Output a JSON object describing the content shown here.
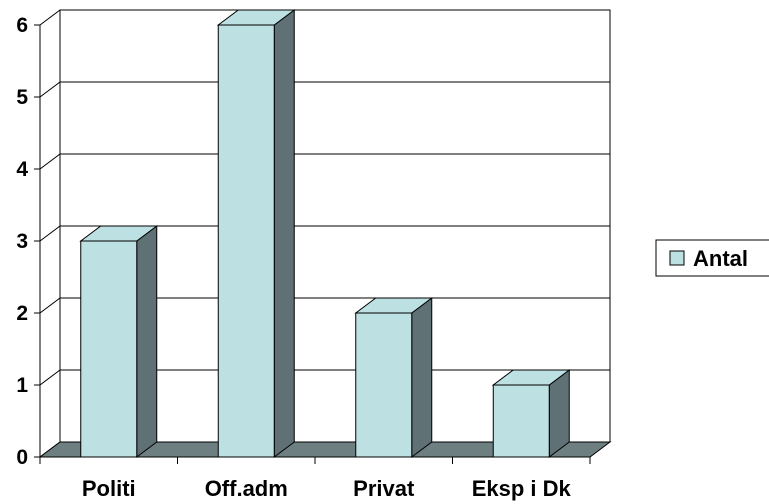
{
  "chart_data": {
    "type": "bar",
    "categories": [
      "Politi",
      "Off.adm",
      "Privat",
      "Eksp i Dk"
    ],
    "series": [
      {
        "name": "Antal",
        "values": [
          3,
          6,
          2,
          1
        ]
      }
    ],
    "yticks": [
      "0",
      "1",
      "2",
      "3",
      "4",
      "5",
      "6"
    ],
    "ylim": [
      0,
      6
    ],
    "grid": true,
    "legend": "right",
    "colors": {
      "bar_front": "#bde0e3",
      "bar_side": "#5f7174",
      "bar_top": "#bde0e3",
      "floor": "#6e7f82",
      "plot_background": "#ffffff",
      "outline": "#000000"
    }
  }
}
